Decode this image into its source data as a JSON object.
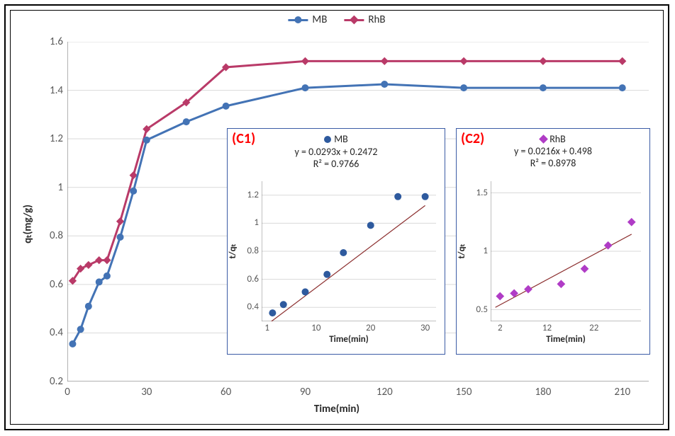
{
  "main_chart": {
    "type": "line-scatter",
    "x_axis": {
      "label": "Time(min)",
      "min": 0,
      "max": 220,
      "ticks": [
        0,
        30,
        60,
        90,
        120,
        150,
        180,
        210
      ],
      "tick_fontsize": 15,
      "title_fontsize": 15
    },
    "y_axis": {
      "label": "qₜ(mg/g)",
      "min": 0.2,
      "max": 1.6,
      "ticks": [
        0.2,
        0.4,
        0.6,
        0.8,
        1,
        1.2,
        1.4,
        1.6
      ],
      "tick_fontsize": 15,
      "title_fontsize": 15
    },
    "grid_color": "#d9d9d9",
    "axis_color": "#808080",
    "background_color": "#ffffff",
    "outer_border_color": "#000000",
    "legend": {
      "items": [
        "MB",
        "RhB"
      ],
      "fontsize": 15
    },
    "series": {
      "MB": {
        "color": "#4373b5",
        "marker": "circle",
        "marker_size": 10,
        "line_width": 3,
        "x": [
          2,
          5,
          8,
          12,
          15,
          20,
          25,
          30,
          45,
          60,
          90,
          120,
          150,
          180,
          210
        ],
        "y": [
          0.355,
          0.415,
          0.51,
          0.61,
          0.635,
          0.795,
          0.985,
          1.195,
          1.27,
          1.335,
          1.41,
          1.425,
          1.41,
          1.41,
          1.41
        ]
      },
      "RhB": {
        "color": "#b93a68",
        "marker": "diamond",
        "marker_size": 9,
        "line_width": 3,
        "x": [
          2,
          5,
          8,
          12,
          15,
          20,
          25,
          30,
          45,
          60,
          90,
          120,
          150,
          180,
          210
        ],
        "y": [
          0.615,
          0.665,
          0.68,
          0.7,
          0.7,
          0.86,
          1.05,
          1.24,
          1.35,
          1.495,
          1.52,
          1.52,
          1.52,
          1.52,
          1.52
        ]
      }
    }
  },
  "inset_c1": {
    "label": "(C1)",
    "label_color": "#ff0000",
    "label_fontsize": 20,
    "type": "scatter-fit",
    "legend": "MB",
    "equation": "y = 0.0293x + 0.2472",
    "r2": "R² = 0.9766",
    "meta_fontsize": 14,
    "border_color": "#3b5ba5",
    "x_axis": {
      "label": "Time(min)",
      "min": 0,
      "max": 32,
      "ticks": [
        1,
        10,
        20,
        30
      ],
      "tick_fontsize": 13
    },
    "y_axis": {
      "label": "t/qₜ",
      "min": 0.3,
      "max": 1.3,
      "ticks": [
        0.4,
        0.6,
        0.8,
        1,
        1.2
      ],
      "tick_fontsize": 13
    },
    "marker": {
      "shape": "circle",
      "color": "#2e5a9e",
      "size": 10
    },
    "fit_line": {
      "color": "#8c2f2f",
      "width": 1.2
    },
    "points": {
      "x": [
        2,
        4,
        8,
        12,
        15,
        20,
        25,
        30
      ],
      "y": [
        0.36,
        0.42,
        0.51,
        0.635,
        0.79,
        0.985,
        1.19,
        1.19
      ]
    }
  },
  "inset_c2": {
    "label": "(C2)",
    "label_color": "#ff0000",
    "label_fontsize": 20,
    "type": "scatter-fit",
    "legend": "RhB",
    "equation": "y = 0.0216x + 0.498",
    "r2": "R² = 0.8978",
    "meta_fontsize": 14,
    "border_color": "#3b5ba5",
    "x_axis": {
      "label": "Time(min)",
      "min": 0,
      "max": 32,
      "ticks": [
        2,
        12,
        22
      ],
      "tick_fontsize": 13
    },
    "y_axis": {
      "label": "t/qₜ",
      "min": 0.4,
      "max": 1.6,
      "ticks": [
        0.5,
        1,
        1.5
      ],
      "tick_fontsize": 13
    },
    "marker": {
      "shape": "diamond",
      "color": "#b03cc6",
      "size": 10
    },
    "fit_line": {
      "color": "#8c2f2f",
      "width": 1.2
    },
    "points": {
      "x": [
        2,
        5,
        8,
        15,
        20,
        25,
        30
      ],
      "y": [
        0.615,
        0.64,
        0.675,
        0.72,
        0.85,
        1.05,
        1.25
      ]
    }
  }
}
